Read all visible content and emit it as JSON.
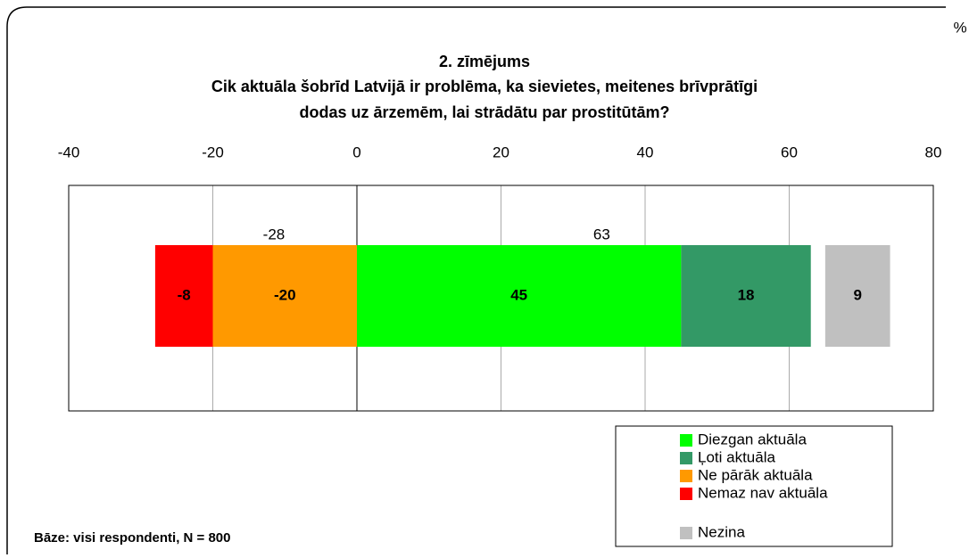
{
  "chart_data": {
    "type": "diverging_bar",
    "title": [
      "2. zīmējums",
      "Cik aktuāla šobrīd Latvijā ir problēma, ka sievietes, meitenes brīvprātīgi",
      "dodas uz ārzemēm, lai strādātu par prostitūtām?"
    ],
    "unit": "%",
    "footnote": "Bāze: visi respondenti, N = 800",
    "xlim": [
      -40,
      80
    ],
    "xticks": [
      -40,
      -20,
      0,
      20,
      40,
      60,
      80
    ],
    "grid": true,
    "series": [
      {
        "name": "Diezgan aktuāla",
        "color": "#00ff00",
        "values": [
          45
        ]
      },
      {
        "name": "Ļoti aktuāla",
        "color": "#339966",
        "values": [
          18
        ]
      },
      {
        "name": "Ne pārāk aktuāla",
        "color": "#ff9900",
        "values": [
          -20
        ]
      },
      {
        "name": "Nemaz nav aktuāla",
        "color": "#ff0000",
        "values": [
          -8
        ]
      }
    ],
    "other": {
      "name": "Nezina",
      "color": "#c0c0c0",
      "values": [
        9
      ]
    },
    "totals": {
      "negative": -28,
      "positive": 63
    }
  }
}
